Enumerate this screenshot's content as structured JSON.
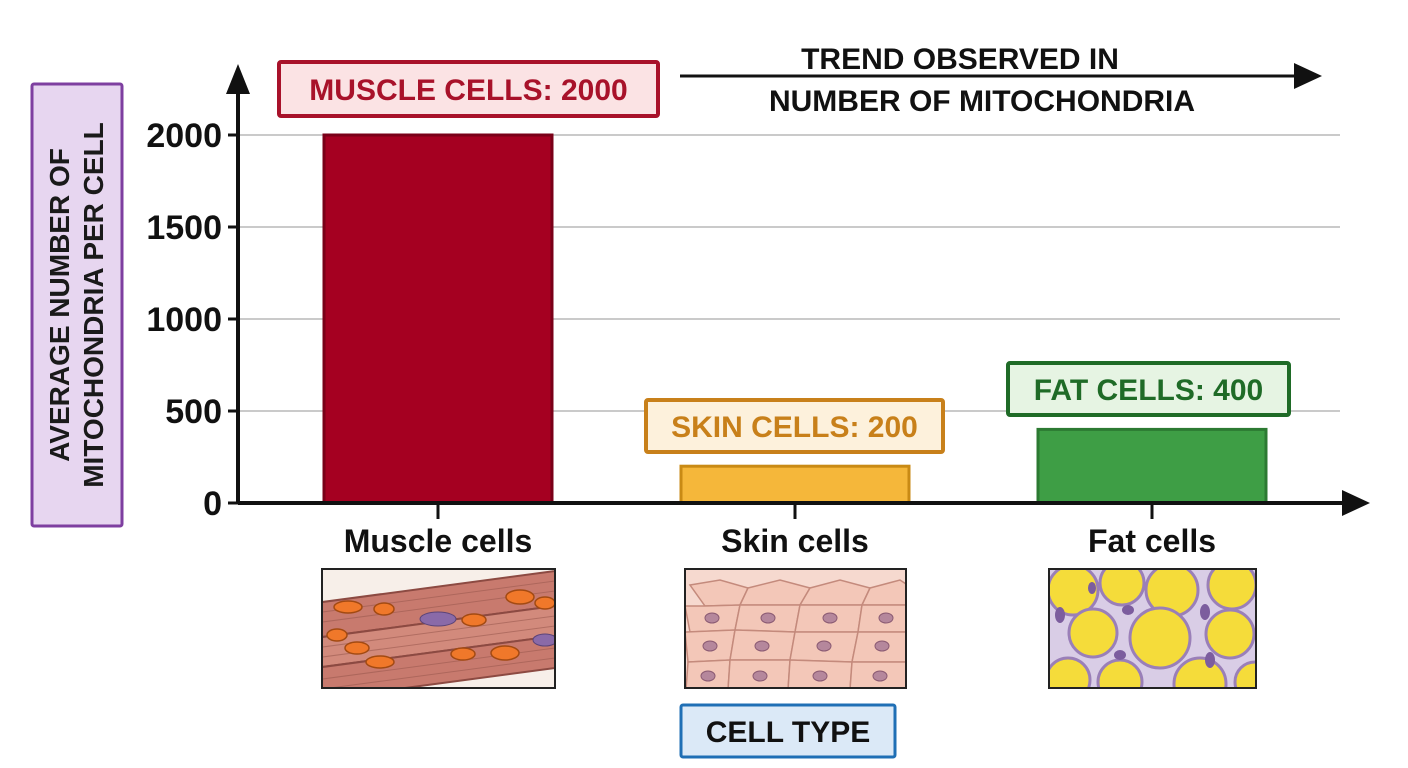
{
  "chart_data": {
    "type": "bar",
    "categories": [
      "Muscle cells",
      "Skin cells",
      "Fat cells"
    ],
    "values": [
      2000,
      200,
      400
    ],
    "annotations": [
      "MUSCLE CELLS: 2000",
      "SKIN CELLS: 200",
      "FAT CELLS: 400"
    ],
    "ylabel_lines": [
      "AVERAGE NUMBER OF",
      "MITOCHONDRIA PER CELL"
    ],
    "xlabel": "CELL TYPE",
    "trend_label_lines": [
      "TREND OBSERVED IN",
      "NUMBER OF MITOCHONDRIA"
    ],
    "yticks": [
      0,
      500,
      1000,
      1500,
      2000
    ],
    "ylim": [
      0,
      2000
    ],
    "grid": true,
    "bar_colors": [
      "#a50021",
      "#f5b73a",
      "#3e9e45"
    ],
    "bar_border_colors": [
      "#7a0018",
      "#c98a14",
      "#2c7a32"
    ],
    "label_colors": [
      "#a8122a",
      "#c8801a",
      "#1f6b27"
    ],
    "label_fills": [
      "#fbe3e4",
      "#fdf1dc",
      "#e6f4e3"
    ],
    "ylabel_color": "#7e3fa0",
    "ylabel_fill": "#e7d6f0",
    "xlabel_color": "#1f6fb5",
    "xlabel_fill": "#dbe9f7",
    "illustrations": [
      "muscle-cells-illustration",
      "skin-cells-illustration",
      "fat-cells-illustration"
    ]
  }
}
